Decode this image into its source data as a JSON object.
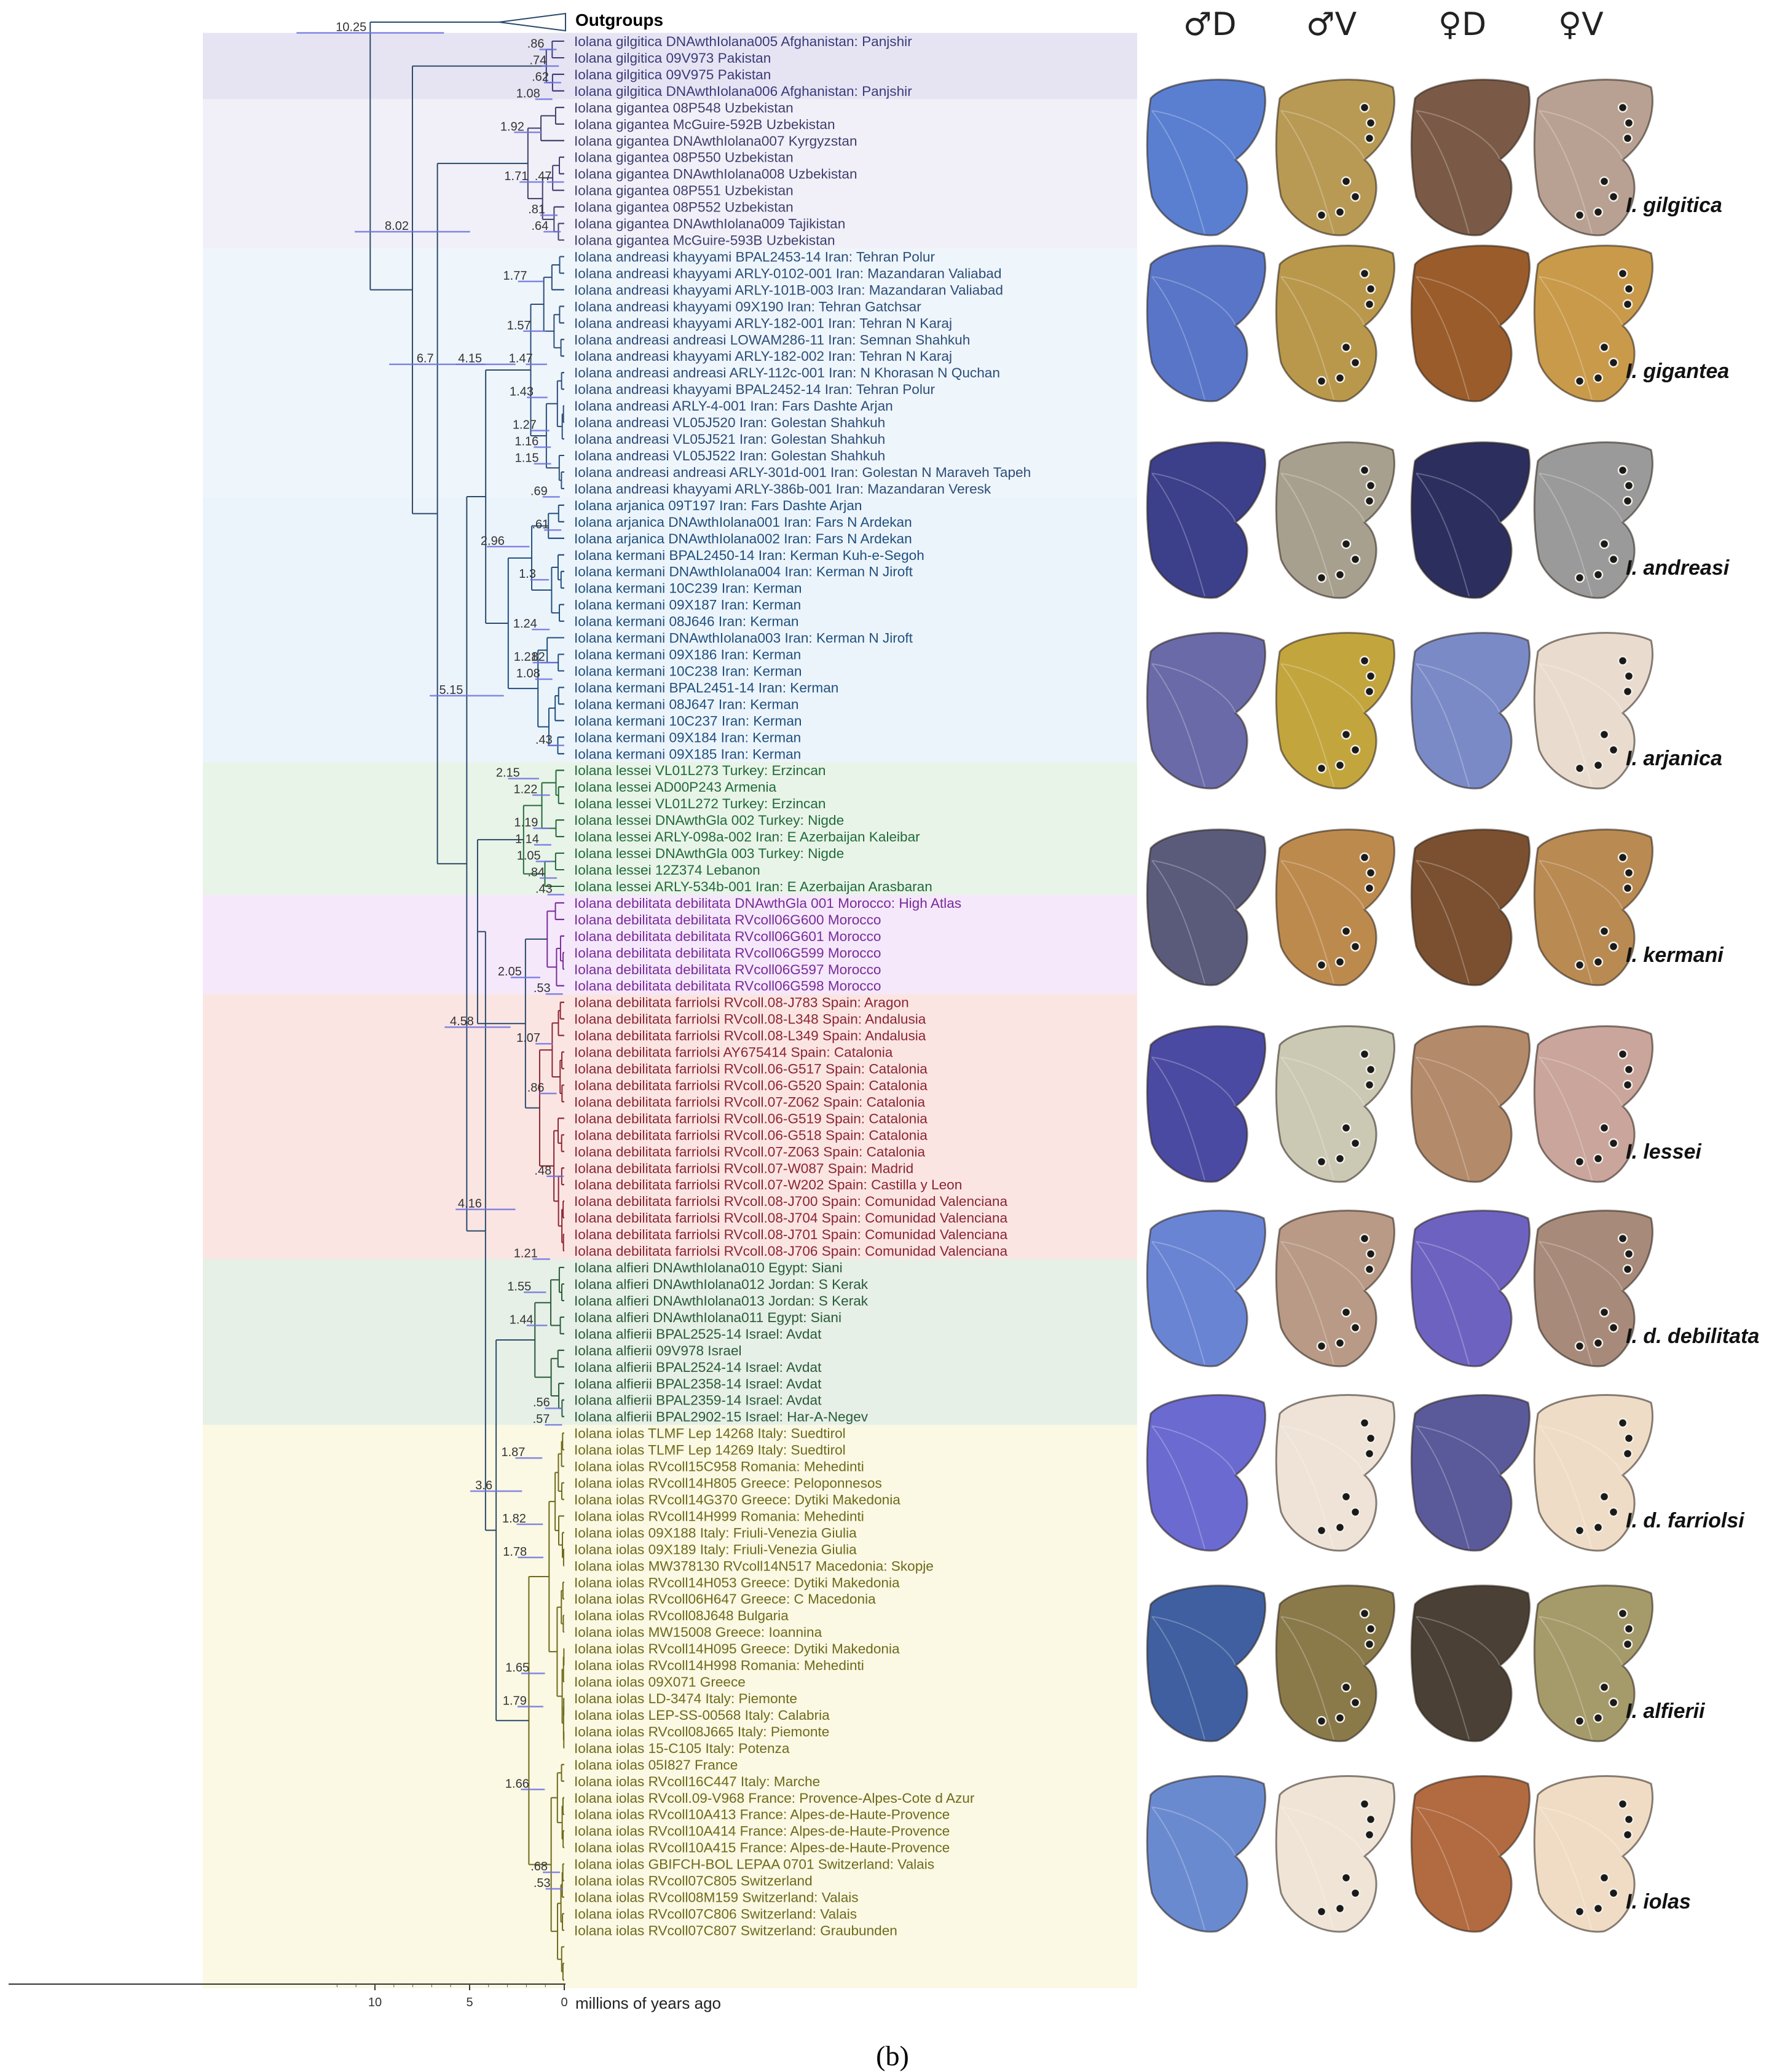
{
  "figure": {
    "outgroups_label": "Outgroups",
    "axis_label": "millions of years ago",
    "axis_ticks": [
      "10",
      "5",
      "0"
    ],
    "caption": "(b)",
    "photo_headers": [
      "♂D",
      "♂V",
      "♀D",
      "♀V"
    ]
  },
  "tips": [
    "Iolana gilgitica DNAwthIolana005 Afghanistan: Panjshir",
    "Iolana gilgitica 09V973 Pakistan",
    "Iolana gilgitica 09V975 Pakistan",
    "Iolana gilgitica DNAwthIolana006 Afghanistan: Panjshir",
    "Iolana gigantea 08P548 Uzbekistan",
    "Iolana gigantea McGuire-592B Uzbekistan",
    "Iolana gigantea DNAwthIolana007 Kyrgyzstan",
    "Iolana gigantea 08P550 Uzbekistan",
    "Iolana gigantea DNAwthIolana008 Uzbekistan",
    "Iolana gigantea 08P551 Uzbekistan",
    "Iolana gigantea 08P552 Uzbekistan",
    "Iolana gigantea DNAwthIolana009 Tajikistan",
    "Iolana gigantea McGuire-593B Uzbekistan",
    "Iolana andreasi khayyami BPAL2453-14 Iran: Tehran Polur",
    "Iolana andreasi khayyami ARLY-0102-001 Iran: Mazandaran Valiabad",
    "Iolana andreasi khayyami ARLY-101B-003 Iran: Mazandaran Valiabad",
    "Iolana andreasi khayyami 09X190 Iran: Tehran Gatchsar",
    "Iolana andreasi khayyami ARLY-182-001 Iran: Tehran N Karaj",
    "Iolana andreasi andreasi LOWAM286-11 Iran: Semnan Shahkuh",
    "Iolana andreasi khayyami ARLY-182-002 Iran: Tehran N Karaj",
    "Iolana andreasi andreasi ARLY-112c-001 Iran: N Khorasan N Quchan",
    "Iolana andreasi khayyami BPAL2452-14 Iran: Tehran Polur",
    "Iolana andreasi ARLY-4-001 Iran: Fars Dashte Arjan",
    "Iolana andreasi VL05J520 Iran: Golestan Shahkuh",
    "Iolana andreasi VL05J521 Iran: Golestan Shahkuh",
    "Iolana andreasi VL05J522 Iran: Golestan Shahkuh",
    "Iolana andreasi andreasi ARLY-301d-001 Iran: Golestan N Maraveh Tapeh",
    "Iolana andreasi khayyami ARLY-386b-001 Iran: Mazandaran Veresk",
    "Iolana arjanica 09T197 Iran: Fars Dashte Arjan",
    "Iolana arjanica DNAwthIolana001 Iran: Fars N Ardekan",
    "Iolana arjanica DNAwthIolana002 Iran: Fars N Ardekan",
    "Iolana kermani BPAL2450-14 Iran: Kerman Kuh-e-Segoh",
    "Iolana kermani DNAwthIolana004 Iran: Kerman N Jiroft",
    "Iolana kermani 10C239 Iran: Kerman",
    "Iolana kermani 09X187 Iran: Kerman",
    "Iolana kermani 08J646 Iran: Kerman",
    "Iolana kermani DNAwthIolana003 Iran: Kerman N Jiroft",
    "Iolana kermani 09X186 Iran: Kerman",
    "Iolana kermani 10C238 Iran: Kerman",
    "Iolana kermani BPAL2451-14 Iran: Kerman",
    "Iolana kermani 08J647 Iran: Kerman",
    "Iolana kermani 10C237 Iran: Kerman",
    "Iolana kermani 09X184 Iran: Kerman",
    "Iolana kermani 09X185 Iran: Kerman",
    "Iolana lessei VL01L273 Turkey: Erzincan",
    "Iolana lessei AD00P243 Armenia",
    "Iolana lessei VL01L272 Turkey: Erzincan",
    "Iolana lessei DNAwthGla 002 Turkey: Nigde",
    "Iolana lessei ARLY-098a-002 Iran: E Azerbaijan Kaleibar",
    "Iolana lessei DNAwthGla 003 Turkey: Nigde",
    "Iolana lessei 12Z374 Lebanon",
    "Iolana lessei ARLY-534b-001 Iran: E Azerbaijan Arasbaran",
    "Iolana debilitata debilitata DNAwthGla 001 Morocco: High Atlas",
    "Iolana debilitata debilitata RVcoll06G600 Morocco",
    "Iolana debilitata debilitata RVcoll06G601 Morocco",
    "Iolana debilitata debilitata RVcoll06G599 Morocco",
    "Iolana debilitata debilitata RVcoll06G597 Morocco",
    "Iolana debilitata debilitata RVcoll06G598 Morocco",
    "Iolana debilitata farriolsi RVcoll.08-J783 Spain: Aragon",
    "Iolana debilitata farriolsi RVcoll.08-L348 Spain: Andalusia",
    "Iolana debilitata farriolsi RVcoll.08-L349 Spain: Andalusia",
    "Iolana debilitata farriolsi AY675414 Spain: Catalonia",
    "Iolana debilitata farriolsi RVcoll.06-G517 Spain: Catalonia",
    "Iolana debilitata farriolsi RVcoll.06-G520 Spain: Catalonia",
    "Iolana debilitata farriolsi RVcoll.07-Z062 Spain: Catalonia",
    "Iolana debilitata farriolsi RVcoll.06-G519 Spain: Catalonia",
    "Iolana debilitata farriolsi RVcoll.06-G518 Spain: Catalonia",
    "Iolana debilitata farriolsi RVcoll.07-Z063 Spain: Catalonia",
    "Iolana debilitata farriolsi RVcoll.07-W087 Spain: Madrid",
    "Iolana debilitata farriolsi RVcoll.07-W202 Spain: Castilla y Leon",
    "Iolana debilitata farriolsi RVcoll.08-J700 Spain: Comunidad Valenciana",
    "Iolana debilitata farriolsi RVcoll.08-J704 Spain: Comunidad Valenciana",
    "Iolana debilitata farriolsi RVcoll.08-J701 Spain: Comunidad Valenciana",
    "Iolana debilitata farriolsi RVcoll.08-J706 Spain: Comunidad Valenciana",
    "Iolana alfieri DNAwthIolana010 Egypt: Siani",
    "Iolana alfieri DNAwthIolana012 Jordan: S Kerak",
    "Iolana alfieri DNAwthIolana013 Jordan: S Kerak",
    "Iolana alfieri DNAwthIolana011 Egypt: Siani",
    "Iolana alfierii BPAL2525-14 Israel: Avdat",
    "Iolana alfierii 09V978 Israel",
    "Iolana alfierii BPAL2524-14 Israel: Avdat",
    "Iolana alfierii BPAL2358-14 Israel: Avdat",
    "Iolana alfierii BPAL2359-14 Israel: Avdat",
    "Iolana alfierii BPAL2902-15 Israel: Har-A-Negev",
    "Iolana iolas TLMF Lep 14268 Italy: Suedtirol",
    "Iolana iolas TLMF Lep 14269 Italy: Suedtirol",
    "Iolana iolas RVcoll15C958 Romania: Mehedinti",
    "Iolana iolas RVcoll14H805 Greece: Peloponnesos",
    "Iolana iolas RVcoll14G370 Greece: Dytiki Makedonia",
    "Iolana iolas RVcoll14H999 Romania: Mehedinti",
    "Iolana iolas 09X188 Italy: Friuli-Venezia Giulia",
    "Iolana iolas 09X189 Italy: Friuli-Venezia Giulia",
    "Iolana iolas MW378130 RVcoll14N517 Macedonia: Skopje",
    "Iolana iolas RVcoll14H053 Greece: Dytiki Makedonia",
    "Iolana iolas RVcoll06H647 Greece: C Macedonia",
    "Iolana iolas RVcoll08J648 Bulgaria",
    "Iolana iolas MW15008 Greece: Ioannina",
    "Iolana iolas RVcoll14H095 Greece: Dytiki Makedonia",
    "Iolana iolas RVcoll14H998 Romania: Mehedinti",
    "Iolana iolas 09X071 Greece",
    "Iolana iolas LD-3474 Italy: Piemonte",
    "Iolana iolas LEP-SS-00568 Italy: Calabria",
    "Iolana iolas RVcoll08J665 Italy: Piemonte",
    "Iolana iolas 15-C105 Italy: Potenza",
    "Iolana iolas 05I827 France",
    "Iolana iolas RVcoll16C447 Italy: Marche",
    "Iolana iolas RVcoll.09-V968 France: Provence-Alpes-Cote d Azur",
    "Iolana iolas RVcoll10A413 France: Alpes-de-Haute-Provence",
    "Iolana iolas RVcoll10A414 France: Alpes-de-Haute-Provence",
    "Iolana iolas RVcoll10A415 France: Alpes-de-Haute-Provence",
    "Iolana iolas GBIFCH-BOL LEPAA 0701 Switzerland: Valais",
    "Iolana iolas RVcoll07C805 Switzerland",
    "Iolana iolas RVcoll08M159 Switzerland: Valais",
    "Iolana iolas RVcoll07C806 Switzerland: Valais",
    "Iolana iolas RVcoll07C807 Switzerland: Graubunden"
  ],
  "groups": [
    {
      "name": "gilgitica",
      "start": 0,
      "end": 3,
      "text_color": "#3a3a7a",
      "bg_color": "#e6e4f3"
    },
    {
      "name": "gigantea",
      "start": 4,
      "end": 12,
      "text_color": "#3f3f6e",
      "bg_color": "#f1f0f8"
    },
    {
      "name": "andreasi",
      "start": 13,
      "end": 27,
      "text_color": "#2c4d78",
      "bg_color": "#eef5fb"
    },
    {
      "name": "arjanica-kermani",
      "start": 28,
      "end": 43,
      "text_color": "#1f4f7d",
      "bg_color": "#ecf4fb"
    },
    {
      "name": "lessei",
      "start": 44,
      "end": 51,
      "text_color": "#1f6a3a",
      "bg_color": "#e9f4e8"
    },
    {
      "name": "debilitata",
      "start": 52,
      "end": 57,
      "text_color": "#7a2a9a",
      "bg_color": "#f5e8fb"
    },
    {
      "name": "farriolsi",
      "start": 58,
      "end": 73,
      "text_color": "#8a2533",
      "bg_color": "#fbe5e3"
    },
    {
      "name": "alfierii",
      "start": 74,
      "end": 83,
      "text_color": "#2a5a3a",
      "bg_color": "#e6f0e6"
    },
    {
      "name": "iolas",
      "start": 84,
      "end": 117,
      "text_color": "#6d6a1c",
      "bg_color": "#fbf8e3"
    }
  ],
  "node_ages": [
    {
      "label": "10.25",
      "age": 10.25,
      "tip_index": 0
    },
    {
      "label": "8.02",
      "age": 8.02,
      "tip_index": 12
    },
    {
      "label": "6.7",
      "age": 6.7,
      "tip_index": 20
    },
    {
      "label": "5.15",
      "age": 5.15,
      "tip_index": 40
    },
    {
      "label": "4.58",
      "age": 4.58,
      "tip_index": 60
    },
    {
      "label": "4.16",
      "age": 4.16,
      "tip_index": 71
    },
    {
      "label": "4.15",
      "age": 4.15,
      "tip_index": 20
    },
    {
      "label": "3.6",
      "age": 3.6,
      "tip_index": 88
    },
    {
      "label": "2.96",
      "age": 2.96,
      "tip_index": 31
    },
    {
      "label": "2.15",
      "age": 2.15,
      "tip_index": 45
    },
    {
      "label": "2.05",
      "age": 2.05,
      "tip_index": 57
    },
    {
      "label": "1.92",
      "age": 1.92,
      "tip_index": 6
    },
    {
      "label": "1.87",
      "age": 1.87,
      "tip_index": 86
    },
    {
      "label": "1.82",
      "age": 1.82,
      "tip_index": 90
    },
    {
      "label": "1.78",
      "age": 1.78,
      "tip_index": 92
    },
    {
      "label": "1.77",
      "age": 1.77,
      "tip_index": 15
    },
    {
      "label": "1.79",
      "age": 1.79,
      "tip_index": 101
    },
    {
      "label": "1.71",
      "age": 1.71,
      "tip_index": 9
    },
    {
      "label": "1.66",
      "age": 1.66,
      "tip_index": 106
    },
    {
      "label": "1.65",
      "age": 1.65,
      "tip_index": 99
    },
    {
      "label": "1.57",
      "age": 1.57,
      "tip_index": 18
    },
    {
      "label": "1.55",
      "age": 1.55,
      "tip_index": 76
    },
    {
      "label": "1.44",
      "age": 1.44,
      "tip_index": 78
    },
    {
      "label": "1.47",
      "age": 1.47,
      "tip_index": 20
    },
    {
      "label": "1.43",
      "age": 1.43,
      "tip_index": 22
    },
    {
      "label": "1.3",
      "age": 1.3,
      "tip_index": 33
    },
    {
      "label": "1.27",
      "age": 1.27,
      "tip_index": 24
    },
    {
      "label": "1.24",
      "age": 1.24,
      "tip_index": 36
    },
    {
      "label": "1.22",
      "age": 1.22,
      "tip_index": 46
    },
    {
      "label": "1.21",
      "age": 1.21,
      "tip_index": 74
    },
    {
      "label": "1.21",
      "age": 1.21,
      "tip_index": 38
    },
    {
      "label": "1.19",
      "age": 1.19,
      "tip_index": 48
    },
    {
      "label": "1.16",
      "age": 1.16,
      "tip_index": 25
    },
    {
      "label": "1.15",
      "age": 1.15,
      "tip_index": 26
    },
    {
      "label": "1.14",
      "age": 1.14,
      "tip_index": 49
    },
    {
      "label": "1.08",
      "age": 1.08,
      "tip_index": 4
    },
    {
      "label": "1.08",
      "age": 1.08,
      "tip_index": 39
    },
    {
      "label": "1.07",
      "age": 1.07,
      "tip_index": 61
    },
    {
      "label": "1.05",
      "age": 1.05,
      "tip_index": 50
    },
    {
      "label": ".86",
      "age": 0.86,
      "tip_index": 1
    },
    {
      "label": ".74",
      "age": 0.74,
      "tip_index": 2
    },
    {
      "label": ".62",
      "age": 0.62,
      "tip_index": 3
    },
    {
      "label": ".86",
      "age": 0.86,
      "tip_index": 64
    },
    {
      "label": ".84",
      "age": 0.84,
      "tip_index": 51
    },
    {
      "label": ".82",
      "age": 0.82,
      "tip_index": 38
    },
    {
      "label": ".81",
      "age": 0.81,
      "tip_index": 11
    },
    {
      "label": ".69",
      "age": 0.69,
      "tip_index": 28
    },
    {
      "label": ".68",
      "age": 0.68,
      "tip_index": 111
    },
    {
      "label": ".64",
      "age": 0.64,
      "tip_index": 12
    },
    {
      "label": ".61",
      "age": 0.61,
      "tip_index": 30
    },
    {
      "label": ".57",
      "age": 0.57,
      "tip_index": 84
    },
    {
      "label": ".56",
      "age": 0.56,
      "tip_index": 83
    },
    {
      "label": ".53",
      "age": 0.53,
      "tip_index": 58
    },
    {
      "label": ".53",
      "age": 0.53,
      "tip_index": 112
    },
    {
      "label": ".48",
      "age": 0.48,
      "tip_index": 69
    },
    {
      "label": ".47",
      "age": 0.47,
      "tip_index": 9
    },
    {
      "label": ".43",
      "age": 0.43,
      "tip_index": 52
    },
    {
      "label": ".43",
      "age": 0.43,
      "tip_index": 43
    }
  ],
  "species_labels": [
    "I. gilgitica",
    "I. gigantea",
    "I. andreasi",
    "I. arjanica",
    "I. kermani",
    "I. lessei",
    "I. d. debilitata",
    "I. d. farriolsi",
    "I. alfierii",
    "I. iolas"
  ],
  "wing_colors": [
    [
      "#5a7fd0",
      "#b89a55",
      "#7a5a46",
      "#b8a192"
    ],
    [
      "#5875c8",
      "#b9984c",
      "#9a5c2a",
      "#c99a4a"
    ],
    [
      "#3c3f8a",
      "#a8a08e",
      "#2c2f5e",
      "#9a9a9a"
    ],
    [
      "#6a6aa8",
      "#c3a53e",
      "#7a8ac6",
      "#e9dccf"
    ],
    [
      "#5a5a7a",
      "#bd8a4e",
      "#7a5030",
      "#b98a52"
    ],
    [
      "#4b4aa2",
      "#cbc8b4",
      "#b38a6a",
      "#c9a59c"
    ],
    [
      "#6a84d4",
      "#b99a86",
      "#6e62c0",
      "#a88a7a"
    ],
    [
      "#6a6ad0",
      "#eee3d6",
      "#5a5a9a",
      "#efdcc6"
    ],
    [
      "#3f5fa0",
      "#8a7a4a",
      "#4a4036",
      "#a59a6a"
    ],
    [
      "#6a8ad0",
      "#efe4d6",
      "#b26a40",
      "#f0dcc4"
    ]
  ]
}
